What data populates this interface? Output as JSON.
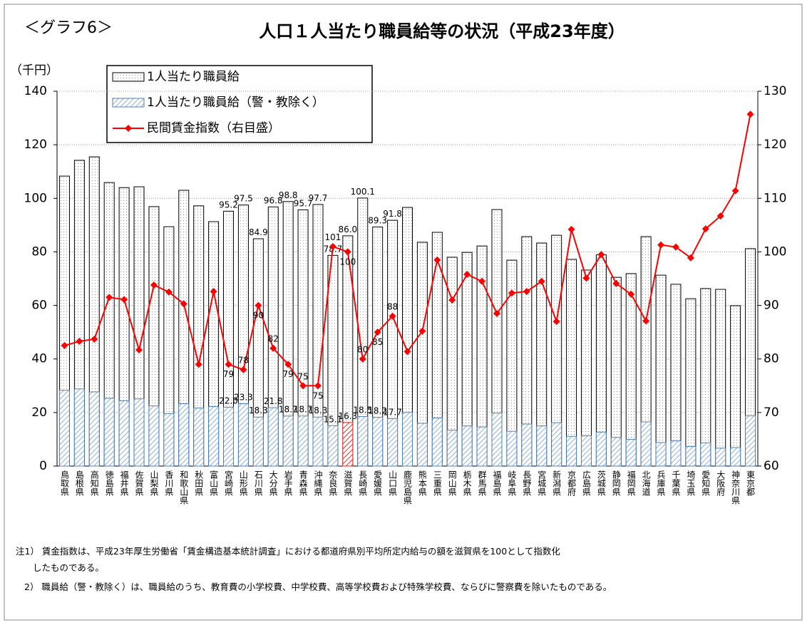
{
  "chart_data": {
    "type": "bar_line",
    "label": "＜グラフ6＞",
    "title": "人口１人当たり職員給等の状況（平成23年度）",
    "y_label": "（千円）",
    "categories": [
      "鳥取県",
      "島根県",
      "高知県",
      "徳島県",
      "福井県",
      "佐賀県",
      "山梨県",
      "香川県",
      "和歌山県",
      "秋田県",
      "富山県",
      "宮崎県",
      "山形県",
      "石川県",
      "大分県",
      "岩手県",
      "青森県",
      "沖縄県",
      "奈良県",
      "滋賀県",
      "長崎県",
      "愛媛県",
      "山口県",
      "鹿児島県",
      "熊本県",
      "三重県",
      "岡山県",
      "栃木県",
      "群馬県",
      "福島県",
      "岐阜県",
      "長野県",
      "宮城県",
      "新潟県",
      "京都府",
      "広島県",
      "茨城県",
      "静岡県",
      "福岡県",
      "北海道",
      "兵庫県",
      "千葉県",
      "埼玉県",
      "愛知県",
      "大阪府",
      "神奈川県",
      "東京都"
    ],
    "highlight": "滋賀県",
    "highlight_color": "#e03030",
    "series": [
      {
        "name": "1人当たり職員給",
        "kind": "bar",
        "color": "#000000",
        "values": [
          108.3,
          114.2,
          115.5,
          105.9,
          104,
          104.3,
          96.9,
          89.4,
          103,
          97.2,
          91.3,
          95.2,
          97.5,
          84.9,
          96.8,
          98.8,
          95.7,
          97.7,
          78.7,
          86.0,
          100.1,
          89.3,
          91.8,
          96.6,
          83.6,
          87.3,
          78,
          79.8,
          82.2,
          95.8,
          76.9,
          85.7,
          83.3,
          86.2,
          77.2,
          73.2,
          78.9,
          70.5,
          71.9,
          85.7,
          71.3,
          67.9,
          62.5,
          66.3,
          66,
          59.9,
          81.2
        ],
        "value_labels": [
          null,
          null,
          null,
          null,
          null,
          null,
          null,
          null,
          null,
          null,
          null,
          "95.2",
          "97.5",
          "84.9",
          "96.8",
          "98.8",
          "95.7",
          "97.7",
          "78.7",
          "86.0",
          "100.1",
          "89.3",
          "91.8",
          null,
          null,
          null,
          null,
          null,
          null,
          null,
          null,
          null,
          null,
          null,
          null,
          null,
          null,
          null,
          null,
          null,
          null,
          null,
          null,
          null,
          null,
          null,
          null
        ]
      },
      {
        "name": "1人当たり職員給（警・教除く）",
        "kind": "bar",
        "color": "#4f81bd",
        "values": [
          28.3,
          28.8,
          27.7,
          25.3,
          24.4,
          25.1,
          22.5,
          19.6,
          23.3,
          21.7,
          22.2,
          22.0,
          23.3,
          18.3,
          21.8,
          18.7,
          18.7,
          18.3,
          15.1,
          16.3,
          18.5,
          18.2,
          17.7,
          20.0,
          16,
          18,
          13.4,
          15,
          14.6,
          19.8,
          13,
          15.7,
          15,
          16.2,
          11.1,
          11.3,
          12.7,
          10.7,
          10,
          16.5,
          8.8,
          9.4,
          7.3,
          8.7,
          6.7,
          6.9,
          18.8
        ],
        "value_labels": [
          null,
          null,
          null,
          null,
          null,
          null,
          null,
          null,
          null,
          null,
          null,
          "22.0",
          "23.3",
          "18.3",
          "21.8",
          "18.7",
          "18.7",
          "18.3",
          "15.1",
          "16.3",
          "18.5",
          "18.2",
          "17.7",
          null,
          null,
          null,
          null,
          null,
          null,
          null,
          null,
          null,
          null,
          null,
          null,
          null,
          null,
          null,
          null,
          null,
          null,
          null,
          null,
          null,
          null,
          null,
          null
        ]
      },
      {
        "name": "民間賃金指数（右目盛）",
        "kind": "line",
        "axis": "y2",
        "color": "#ff0000",
        "values": [
          82.5,
          83.3,
          83.7,
          91.5,
          91.1,
          81.7,
          93.8,
          92.5,
          90.3,
          79,
          92.6,
          79,
          78,
          90,
          82,
          79,
          75,
          75,
          101,
          100,
          80,
          85,
          88,
          81.4,
          85.2,
          98.5,
          91,
          95.8,
          94.5,
          88.5,
          92.3,
          92.6,
          94.5,
          87,
          104.2,
          95.1,
          99.5,
          94.1,
          92.1,
          87.1,
          101.3,
          100.9,
          98.9,
          104.3,
          106.7,
          111.4,
          125.7
        ],
        "value_labels": [
          null,
          null,
          null,
          null,
          null,
          null,
          null,
          null,
          null,
          null,
          null,
          "79",
          "78",
          "90",
          "82",
          "79",
          "75",
          "75",
          "101",
          "100",
          "80",
          "85",
          "88",
          null,
          null,
          null,
          null,
          null,
          null,
          null,
          null,
          null,
          null,
          null,
          null,
          null,
          null,
          null,
          null,
          null,
          null,
          null,
          null,
          null,
          null,
          null,
          null
        ]
      }
    ],
    "ylim": [
      0,
      140
    ],
    "yticks": [
      0,
      20,
      40,
      60,
      80,
      100,
      120,
      140
    ],
    "y2lim": [
      60,
      130
    ],
    "y2ticks": [
      60,
      70,
      80,
      90,
      100,
      110,
      120,
      130
    ],
    "grid": true,
    "legend": "top-left",
    "notes": [
      "注1） 賃金指数は、平成23年厚生労働省「賃金構造基本統計調査」における都道府県別平均所定内給与の額を滋賀県を100として指数化",
      "したものである。",
      "2） 職員給（警・教除く）は、職員給のうち、教育費の小学校費、中学校費、高等学校費および特殊学校費、ならびに警察費を除いたものである。"
    ]
  }
}
